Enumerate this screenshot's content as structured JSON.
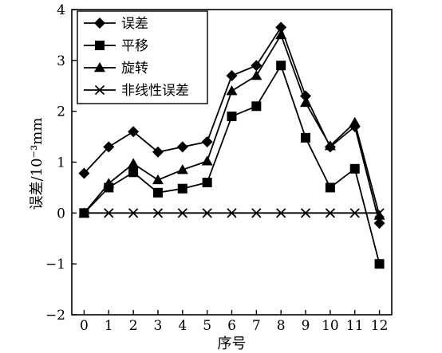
{
  "chart_data": {
    "type": "line",
    "title": "",
    "xlabel": "序号",
    "ylabel": "误差/10⁻³mm",
    "x": [
      0,
      1,
      2,
      3,
      4,
      5,
      6,
      7,
      8,
      9,
      10,
      11,
      12
    ],
    "xlim": [
      -0.5,
      12.5
    ],
    "ylim": [
      -2,
      4
    ],
    "yticks": [
      -2,
      -1,
      0,
      1,
      2,
      3,
      4
    ],
    "xtick_labels": [
      "0",
      "1",
      "2",
      "3",
      "4",
      "5",
      "6",
      "7",
      "8",
      "9",
      "10",
      "11",
      "12"
    ],
    "ytick_labels": [
      "−2",
      "−1",
      "0",
      "1",
      "2",
      "3",
      "4"
    ],
    "grid": false,
    "legend_position": "top-left",
    "series": [
      {
        "name": "误差",
        "marker": "diamond",
        "color": "#000000",
        "values": [
          0.78,
          1.3,
          1.6,
          1.2,
          1.3,
          1.4,
          2.7,
          2.9,
          3.65,
          2.3,
          1.3,
          1.7,
          -0.2
        ]
      },
      {
        "name": "平移",
        "marker": "square",
        "color": "#000000",
        "values": [
          0.0,
          0.5,
          0.8,
          0.4,
          0.48,
          0.6,
          1.9,
          2.1,
          2.9,
          1.48,
          0.5,
          0.87,
          -1.0
        ]
      },
      {
        "name": "旋转",
        "marker": "triangle",
        "color": "#000000",
        "values": [
          0.0,
          0.58,
          0.97,
          0.65,
          0.85,
          1.02,
          2.4,
          2.7,
          3.5,
          2.17,
          1.32,
          1.78,
          -0.05
        ]
      },
      {
        "name": "非线性误差",
        "marker": "x",
        "color": "#000000",
        "values": [
          0,
          0,
          0,
          0,
          0,
          0,
          0,
          0,
          0,
          0,
          0,
          0,
          0
        ]
      }
    ]
  }
}
